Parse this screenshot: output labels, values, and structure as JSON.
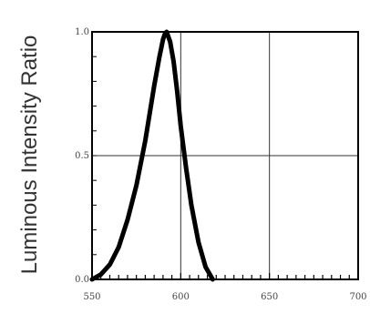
{
  "chart_data": {
    "type": "line",
    "title": "",
    "xlabel": "",
    "ylabel": "Luminous Intensity Ratio",
    "xlim": [
      550,
      700
    ],
    "ylim": [
      0,
      1
    ],
    "grid": true,
    "x_ticks": [
      "550",
      "600",
      "650",
      "700"
    ],
    "y_ticks": [
      "0.0",
      "0.5",
      "1.0"
    ],
    "series": [
      {
        "name": "",
        "x": [
          550,
          555,
          560,
          565,
          570,
          575,
          580,
          585,
          588,
          590,
          591,
          592,
          594,
          596,
          598,
          600,
          603,
          606,
          610,
          614,
          618
        ],
        "y": [
          0.0,
          0.02,
          0.06,
          0.13,
          0.24,
          0.38,
          0.56,
          0.78,
          0.9,
          0.97,
          0.99,
          1.0,
          0.96,
          0.88,
          0.76,
          0.62,
          0.45,
          0.3,
          0.15,
          0.05,
          0.0
        ]
      }
    ],
    "colors": {
      "line": "#000000",
      "grid": "#333333",
      "axes": "#000000"
    }
  }
}
